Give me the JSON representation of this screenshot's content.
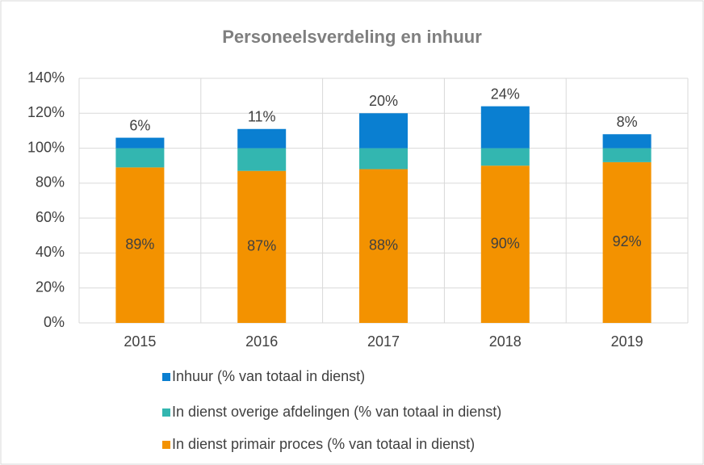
{
  "chart_data": {
    "type": "stacked_bar",
    "title": "Personeelsverdeling en inhuur",
    "categories": [
      "2015",
      "2016",
      "2017",
      "2018",
      "2019"
    ],
    "series": [
      {
        "name": "In dienst primair proces (% van totaal in dienst)",
        "color": "#f39200",
        "values": [
          89,
          87,
          88,
          90,
          92
        ],
        "value_labels": [
          "89%",
          "87%",
          "88%",
          "90%",
          "92%"
        ]
      },
      {
        "name": "In dienst overige afdelingen (% van totaal in dienst)",
        "color": "#33b6b0",
        "values": [
          11,
          13,
          12,
          10,
          8
        ]
      },
      {
        "name": "Inhuur (% van totaal in dienst)",
        "color": "#0a7fd1",
        "values": [
          6,
          11,
          20,
          24,
          8
        ],
        "value_labels": [
          "6%",
          "11%",
          "20%",
          "24%",
          "8%"
        ]
      }
    ],
    "ylim": [
      0,
      140
    ],
    "yticks": [
      {
        "value": 0,
        "label": "0%"
      },
      {
        "value": 20,
        "label": "20%"
      },
      {
        "value": 40,
        "label": "40%"
      },
      {
        "value": 60,
        "label": "60%"
      },
      {
        "value": 80,
        "label": "80%"
      },
      {
        "value": 100,
        "label": "100%"
      },
      {
        "value": 120,
        "label": "120%"
      },
      {
        "value": 140,
        "label": "140%"
      }
    ],
    "grid": true
  }
}
